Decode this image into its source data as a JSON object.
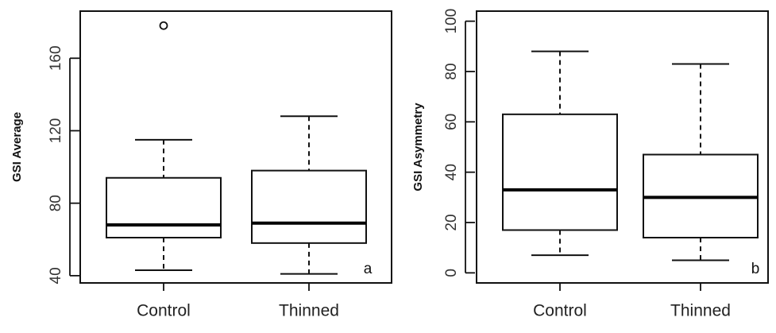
{
  "chart_data": [
    {
      "type": "box",
      "panel_label": "a",
      "ylabel": "GSI Average",
      "ylim": [
        36,
        186
      ],
      "yticks": [
        40,
        80,
        120,
        160
      ],
      "categories": [
        "Control",
        "Thinned"
      ],
      "boxes": [
        {
          "category": "Control",
          "whisker_low": 43,
          "q1": 61,
          "median": 68,
          "q3": 94,
          "whisker_high": 115,
          "outliers": [
            178
          ]
        },
        {
          "category": "Thinned",
          "whisker_low": 41,
          "q1": 58,
          "median": 69,
          "q3": 98,
          "whisker_high": 128,
          "outliers": []
        }
      ],
      "grid": false
    },
    {
      "type": "box",
      "panel_label": "b",
      "ylabel": "GSI  Asymmetry",
      "ylim": [
        -4,
        104
      ],
      "yticks": [
        0,
        20,
        40,
        60,
        80,
        100
      ],
      "categories": [
        "Control",
        "Thinned"
      ],
      "boxes": [
        {
          "category": "Control",
          "whisker_low": 7,
          "q1": 17,
          "median": 33,
          "q3": 63,
          "whisker_high": 88,
          "outliers": []
        },
        {
          "category": "Thinned",
          "whisker_low": 5,
          "q1": 14,
          "median": 30,
          "q3": 47,
          "whisker_high": 83,
          "outliers": []
        }
      ],
      "grid": false
    }
  ]
}
